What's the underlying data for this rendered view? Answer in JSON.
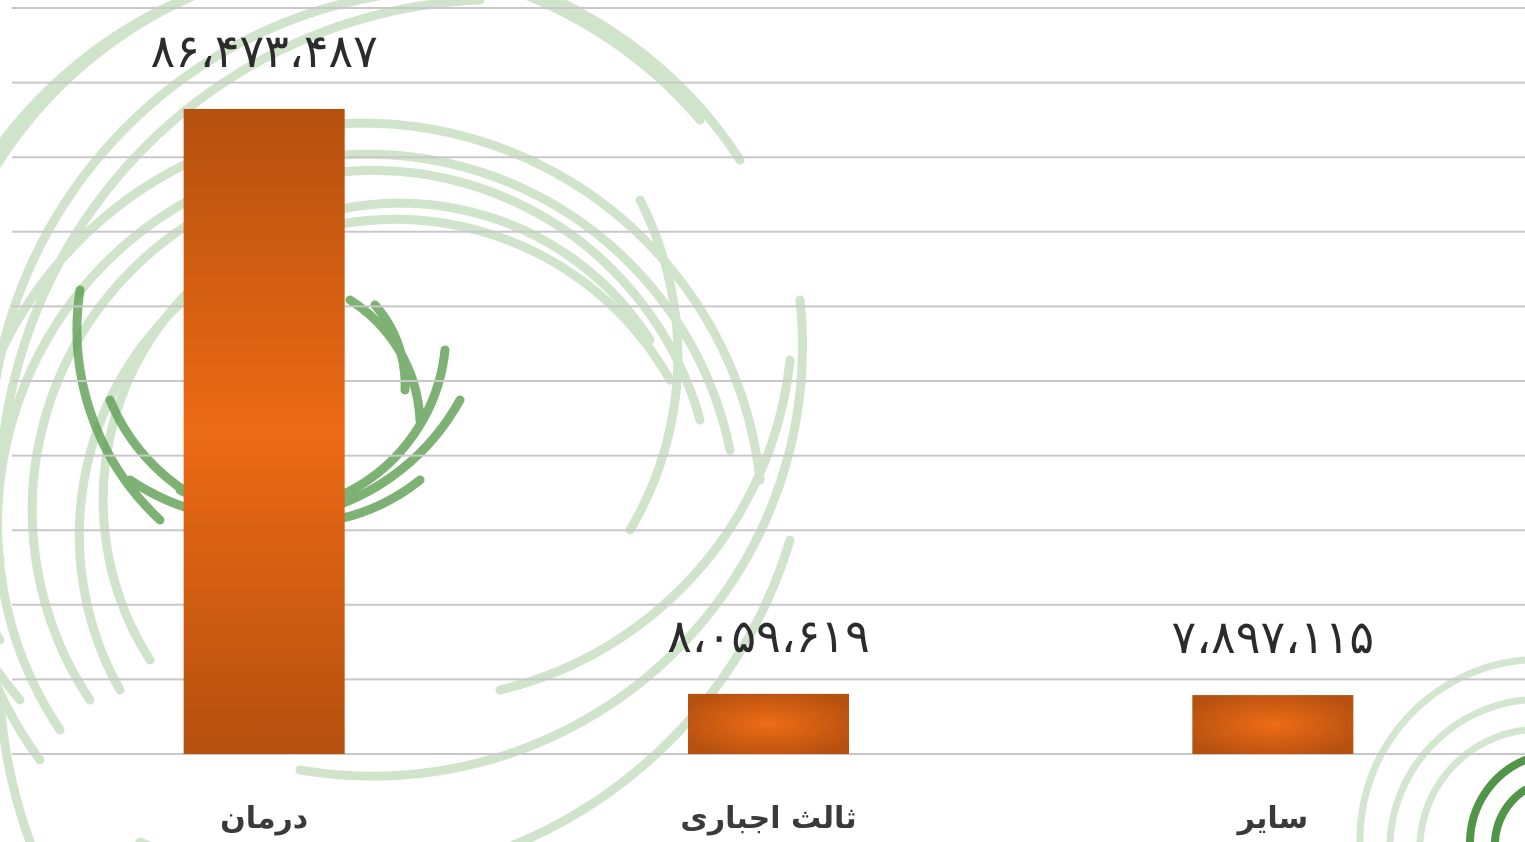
{
  "chart_data": {
    "type": "bar",
    "categories": [
      "درمان",
      "ثالث اجباری",
      "سایر"
    ],
    "values": [
      86473487,
      8059619,
      7897115
    ],
    "data_labels": [
      "۸۶،۴۷۳،۴۸۷",
      "۸،۰۵۹،۶۱۹",
      "۷،۸۹۷،۱۱۵"
    ],
    "title": "",
    "xlabel": "",
    "ylabel": "",
    "ylim": [
      0,
      100000000
    ],
    "grid": true,
    "legend": "none"
  },
  "colors": {
    "bar_edge": "#b5500f",
    "bar_center": "#ec6a15",
    "gridline": "#c8c8c8",
    "decor_green": "#3f8a35"
  },
  "decor": {
    "background": "green-arc-watermark-icon"
  }
}
